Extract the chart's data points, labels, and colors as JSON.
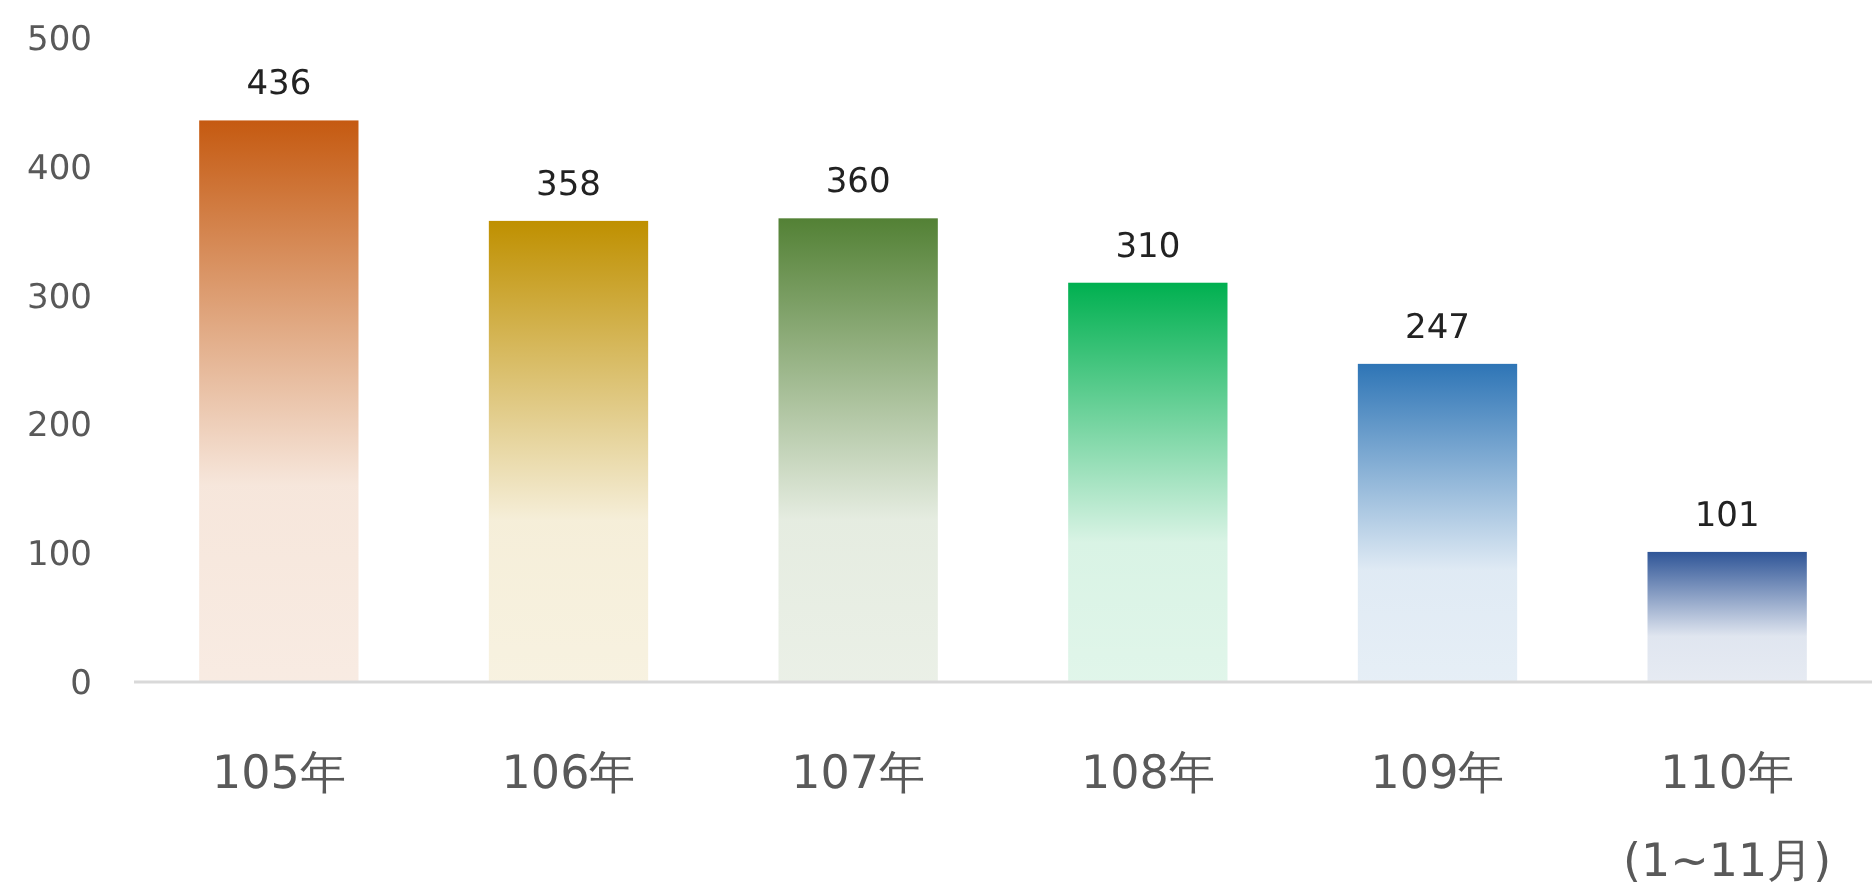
{
  "chart_data": {
    "type": "bar",
    "categories": [
      "105年",
      "106年",
      "107年",
      "108年",
      "109年",
      "110年\n(1~11月)"
    ],
    "values": [
      436,
      358,
      360,
      310,
      247,
      101
    ],
    "colors": [
      "#c55a11",
      "#bf9000",
      "#538135",
      "#00b050",
      "#2e75b6",
      "#2f5597"
    ],
    "ylim": [
      0,
      500
    ],
    "yticks": [
      0,
      100,
      200,
      300,
      400,
      500
    ],
    "data_labels": true,
    "grid": false
  }
}
